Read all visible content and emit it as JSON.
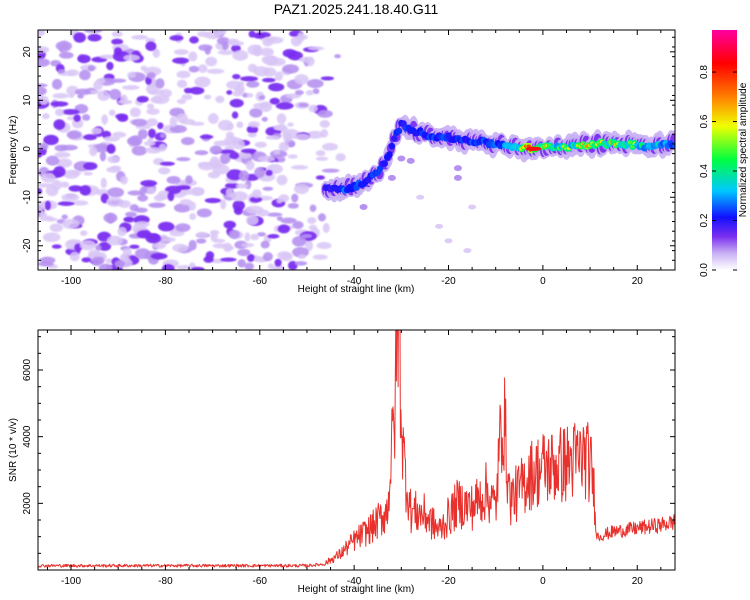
{
  "title": "PAZ1.2025.241.18.40.G11",
  "chart_data": [
    {
      "type": "heatmap",
      "xlabel": "Height of straight line (km)",
      "ylabel": "Frequency (Hz)",
      "xlim": [
        -107,
        28
      ],
      "ylim": [
        -25,
        24.5
      ],
      "xticks": [
        -100,
        -80,
        -60,
        -40,
        -20,
        0,
        20
      ],
      "yticks": [
        -20,
        -10,
        0,
        10,
        20
      ],
      "colorbar": {
        "label": "Normalized spectral amplitude",
        "range": [
          0,
          0.97
        ],
        "ticks": [
          0.0,
          0.2,
          0.4,
          0.6,
          0.8
        ],
        "colors": [
          "#ffffff",
          "#c9b0f4",
          "#7a2ff0",
          "#1010ff",
          "#00c8ff",
          "#00ff40",
          "#f0ff00",
          "#ff8000",
          "#ff0000",
          "#ff00a0"
        ]
      },
      "noise_region_x": [
        -107,
        -44
      ],
      "ridge": {
        "x": [
          -46,
          -42,
          -38,
          -35,
          -33,
          -31,
          -30,
          -28,
          -25,
          -22,
          -18,
          -14,
          -10,
          -6,
          -2,
          2,
          6,
          10,
          14,
          18,
          22,
          26,
          28
        ],
        "frequency": [
          -8,
          -8.5,
          -7,
          -5,
          -2,
          3,
          5,
          4,
          3,
          2.5,
          2,
          1.5,
          1,
          0.5,
          0,
          0.5,
          0.5,
          1,
          1,
          1,
          0.5,
          1,
          1
        ],
        "amplitude": [
          0.2,
          0.35,
          0.3,
          0.3,
          0.25,
          0.25,
          0.3,
          0.25,
          0.3,
          0.3,
          0.3,
          0.3,
          0.35,
          0.45,
          0.9,
          0.5,
          0.6,
          0.7,
          0.65,
          0.6,
          0.5,
          0.4,
          0.35
        ]
      }
    },
    {
      "type": "line",
      "xlabel": "Height of straight line (km)",
      "ylabel": "SNR (10 * v/v)",
      "xlim": [
        -107,
        28
      ],
      "ylim": [
        0,
        7200
      ],
      "xticks": [
        -100,
        -80,
        -60,
        -40,
        -20,
        0,
        20
      ],
      "yticks": [
        2000,
        4000,
        6000
      ],
      "color": "#e8312c",
      "envelope": {
        "x": [
          -107,
          -50,
          -46,
          -43,
          -40,
          -36,
          -33,
          -31.5,
          -30.5,
          -30,
          -29.5,
          -28,
          -25,
          -22,
          -18,
          -15,
          -12,
          -10,
          -8.5,
          -7,
          -5,
          -3,
          0,
          3,
          6,
          9,
          10.5,
          11.5,
          15,
          20,
          25,
          28
        ],
        "snr": [
          130,
          130,
          180,
          400,
          750,
          1100,
          1500,
          3800,
          7100,
          4000,
          2800,
          1500,
          1400,
          1000,
          1700,
          1600,
          2000,
          1600,
          4200,
          1800,
          2000,
          2400,
          2600,
          2650,
          2750,
          2900,
          2450,
          1000,
          1150,
          1250,
          1350,
          1450
        ]
      }
    }
  ]
}
